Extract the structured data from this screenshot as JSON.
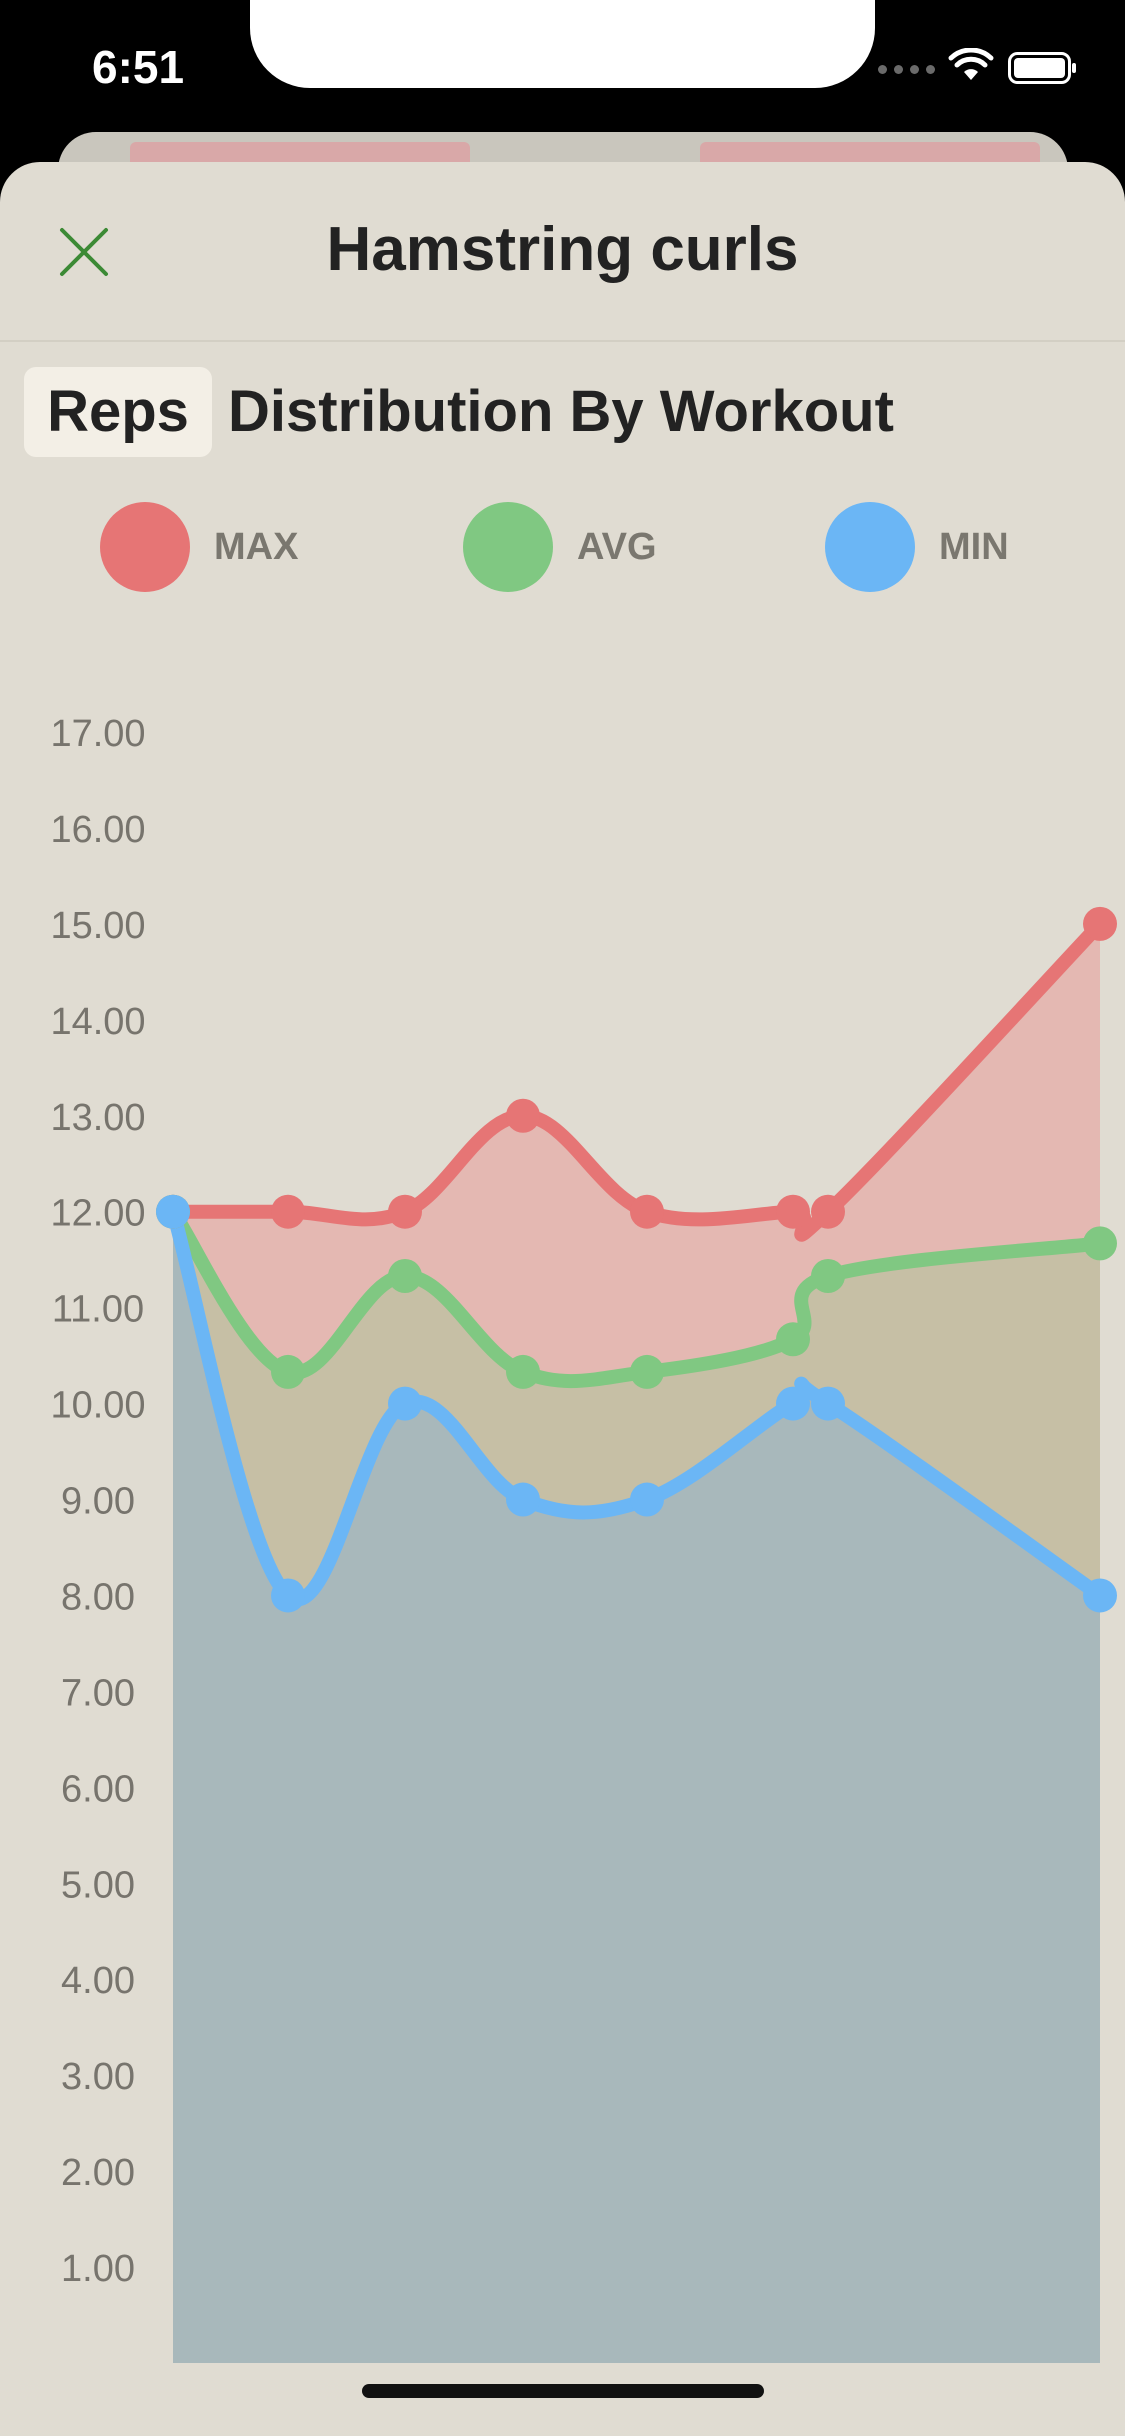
{
  "status": {
    "time": "6:51"
  },
  "header": {
    "title": "Hamstring curls",
    "close_icon": "close-icon"
  },
  "metric_chip": "Reps",
  "subtitle": "Distribution By Workout",
  "legend": [
    {
      "label": "MAX",
      "color": "#e67575"
    },
    {
      "label": "AVG",
      "color": "#80c882"
    },
    {
      "label": "MIN",
      "color": "#6bb6f5"
    }
  ],
  "colors": {
    "max_fill": "#e4b8b2",
    "avg_fill": "#c6bfa5",
    "min_fill": "#a8b8bb",
    "sheet": "#e0dcd2"
  },
  "chart_data": {
    "type": "area",
    "y_ticks": [
      "17.00",
      "16.00",
      "15.00",
      "14.00",
      "13.00",
      "12.00",
      "11.00",
      "10.00",
      "9.00",
      "8.00",
      "7.00",
      "6.00",
      "5.00",
      "4.00",
      "3.00",
      "2.00",
      "1.00"
    ],
    "ylim": [
      0,
      17
    ],
    "grid": false,
    "legend_position": "top",
    "series": [
      {
        "name": "MAX",
        "values": [
          12,
          12,
          12,
          13,
          12,
          12,
          12,
          15
        ]
      },
      {
        "name": "AVG",
        "values": [
          12,
          10.33,
          11.33,
          10.33,
          10.33,
          10.67,
          11.33,
          11.67
        ]
      },
      {
        "name": "MIN",
        "values": [
          12,
          8,
          10,
          9,
          9,
          10,
          10,
          8
        ]
      }
    ]
  }
}
